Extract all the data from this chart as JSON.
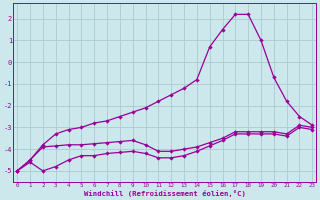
{
  "xlabel": "Windchill (Refroidissement éolien,°C)",
  "bg_color": "#cce8ec",
  "grid_color": "#aacccc",
  "line_color": "#990099",
  "line1_x": [
    0,
    1,
    2,
    3,
    4,
    5,
    6,
    7,
    8,
    9,
    10,
    11,
    12,
    13,
    14,
    15,
    16,
    17,
    18,
    19,
    20,
    21,
    22,
    23
  ],
  "line1_y": [
    -5.0,
    -4.5,
    -3.8,
    -3.3,
    -3.1,
    -3.0,
    -2.8,
    -2.7,
    -2.5,
    -2.3,
    -2.1,
    -1.8,
    -1.5,
    -1.2,
    -0.8,
    0.7,
    1.5,
    2.2,
    2.2,
    1.0,
    -0.7,
    -1.8,
    -2.5,
    -2.9
  ],
  "line2_x": [
    0,
    1,
    2,
    3,
    4,
    5,
    6,
    7,
    8,
    9,
    10,
    11,
    12,
    13,
    14,
    15,
    16,
    17,
    18,
    19,
    20,
    21,
    22,
    23
  ],
  "line2_y": [
    -5.0,
    -4.5,
    -3.9,
    -3.85,
    -3.8,
    -3.8,
    -3.75,
    -3.7,
    -3.65,
    -3.6,
    -3.8,
    -4.1,
    -4.1,
    -4.0,
    -3.9,
    -3.7,
    -3.5,
    -3.2,
    -3.2,
    -3.2,
    -3.2,
    -3.3,
    -2.9,
    -3.0
  ],
  "line3_x": [
    0,
    1,
    2,
    3,
    4,
    5,
    6,
    7,
    8,
    9,
    10,
    11,
    12,
    13,
    14,
    15,
    16,
    17,
    18,
    19,
    20,
    21,
    22,
    23
  ],
  "line3_y": [
    -5.0,
    -4.6,
    -5.0,
    -4.8,
    -4.5,
    -4.3,
    -4.3,
    -4.2,
    -4.15,
    -4.1,
    -4.2,
    -4.4,
    -4.4,
    -4.3,
    -4.1,
    -3.85,
    -3.6,
    -3.3,
    -3.3,
    -3.3,
    -3.3,
    -3.4,
    -3.0,
    -3.1
  ],
  "ylim": [
    -5.5,
    2.7
  ],
  "xlim": [
    -0.3,
    23.3
  ],
  "yticks": [
    -5,
    -4,
    -3,
    -2,
    -1,
    0,
    1,
    2
  ],
  "xticks": [
    0,
    1,
    2,
    3,
    4,
    5,
    6,
    7,
    8,
    9,
    10,
    11,
    12,
    13,
    14,
    15,
    16,
    17,
    18,
    19,
    20,
    21,
    22,
    23
  ]
}
